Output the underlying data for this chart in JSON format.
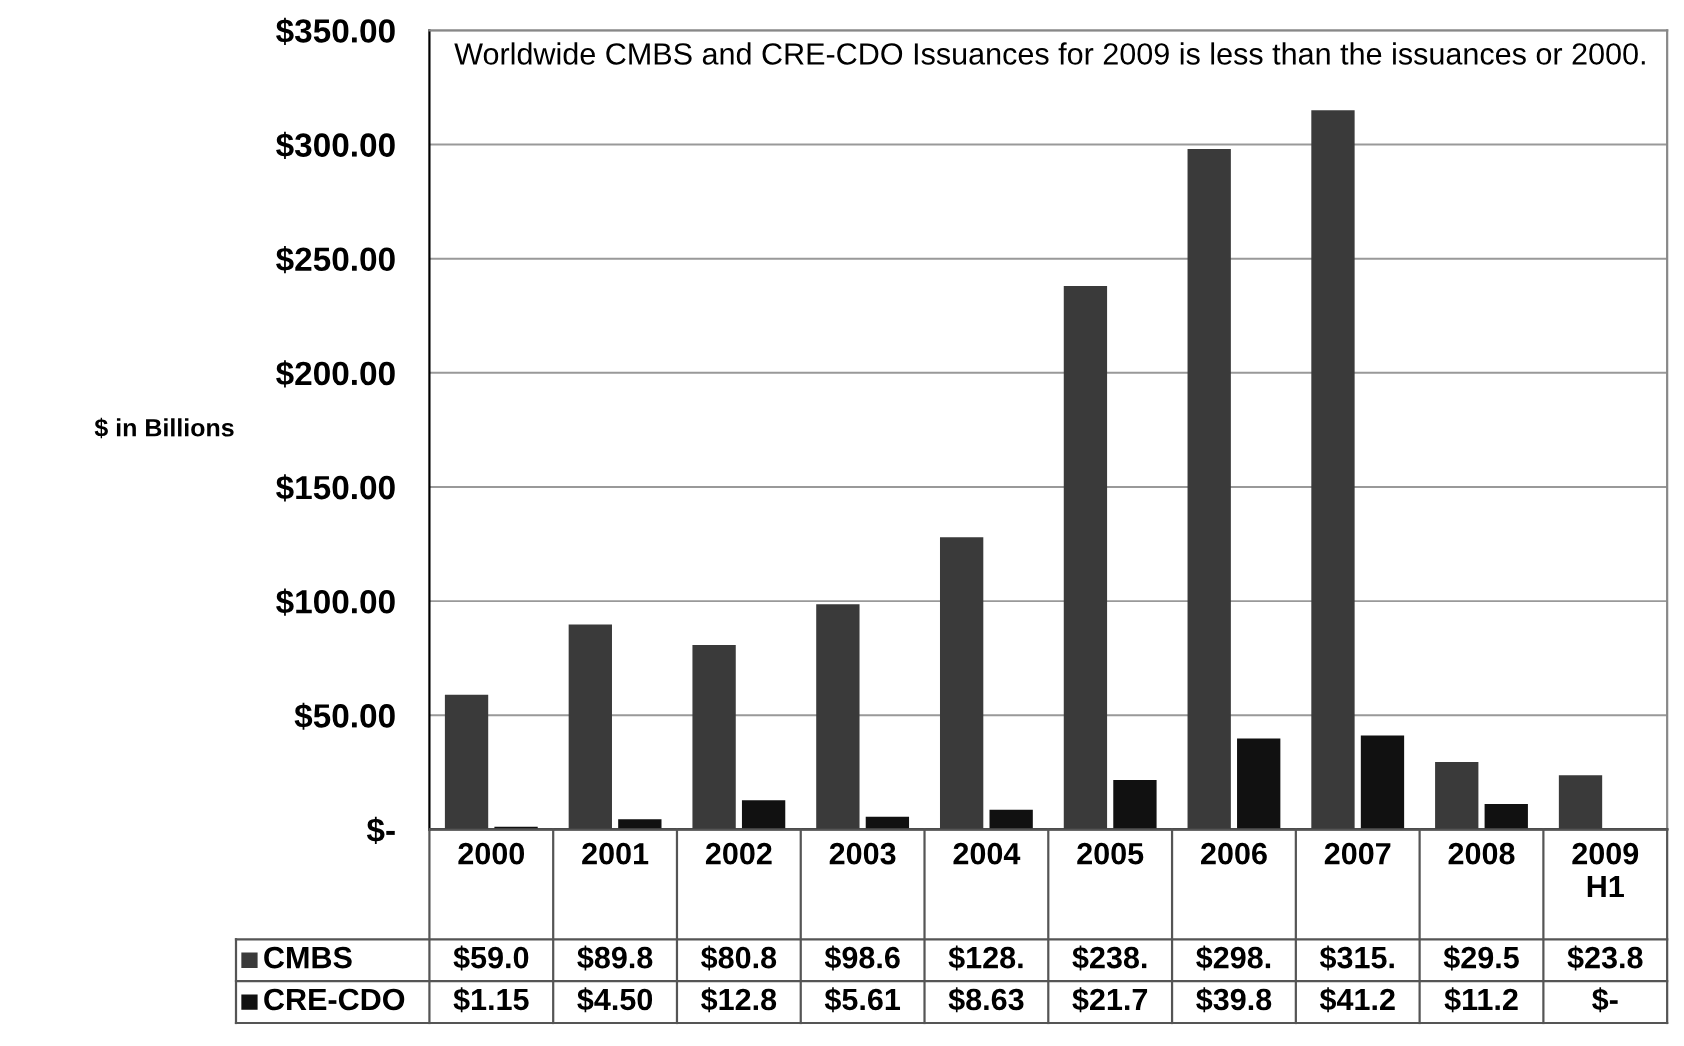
{
  "chart_data": {
    "type": "bar",
    "title": "Worldwide CMBS and CRE-CDO Issuances for 2009 is less than the issuances or 2000.",
    "ylabel": "$ in Billions",
    "categories": [
      "2000",
      "2001",
      "2002",
      "2003",
      "2004",
      "2005",
      "2006",
      "2007",
      "2008",
      "2009\nH1"
    ],
    "series": [
      {
        "name": "CMBS",
        "color": "#3a3a3a",
        "values": [
          59.0,
          89.8,
          80.8,
          98.6,
          128,
          238,
          298,
          315,
          29.5,
          23.8
        ],
        "value_labels": [
          "$59.0",
          "$89.8",
          "$80.8",
          "$98.6",
          "$128.",
          "$238.",
          "$298.",
          "$315.",
          "$29.5",
          "$23.8"
        ]
      },
      {
        "name": "CRE-CDO",
        "color": "#111111",
        "values": [
          1.15,
          4.5,
          12.8,
          5.61,
          8.63,
          21.7,
          39.8,
          41.2,
          11.2,
          0
        ],
        "value_labels": [
          "$1.15",
          "$4.50",
          "$12.8",
          "$5.61",
          "$8.63",
          "$21.7",
          "$39.8",
          "$41.2",
          "$11.2",
          "$-"
        ]
      }
    ],
    "ylim": [
      0,
      350
    ],
    "yticks": [
      {
        "value": 0,
        "label": "$-"
      },
      {
        "value": 50,
        "label": "$50.00"
      },
      {
        "value": 100,
        "label": "$100.00"
      },
      {
        "value": 150,
        "label": "$150.00"
      },
      {
        "value": 200,
        "label": "$200.00"
      },
      {
        "value": 250,
        "label": "$250.00"
      },
      {
        "value": 300,
        "label": "$300.00"
      },
      {
        "value": 350,
        "label": "$350.00"
      }
    ],
    "grid": "y",
    "legend": "bottom left"
  }
}
